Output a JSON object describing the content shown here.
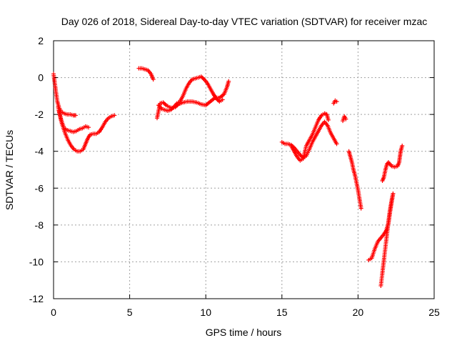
{
  "chart_data": {
    "type": "scatter",
    "title": "Day 026 of 2018, Sidereal Day-to-day VTEC variation (SDTVAR) for receiver mzac",
    "xlabel": "GPS time / hours",
    "ylabel": "SDTVAR / TECUs",
    "xlim": [
      0,
      25
    ],
    "ylim": [
      -12,
      2
    ],
    "xticks": [
      "0",
      "5",
      "10",
      "15",
      "20",
      "25"
    ],
    "yticks": [
      "2",
      "0",
      "-2",
      "-4",
      "-6",
      "-8",
      "-10",
      "-12"
    ],
    "grid": true,
    "marker": "+",
    "series": [
      {
        "name": "SDTVAR",
        "color": "#ff0000",
        "segments": [
          [
            [
              0.0,
              0.2
            ],
            [
              0.08,
              -0.3
            ],
            [
              0.16,
              -0.8
            ],
            [
              0.25,
              -1.3
            ],
            [
              0.35,
              -1.6
            ],
            [
              0.5,
              -1.85
            ],
            [
              0.7,
              -1.95
            ],
            [
              0.9,
              -2.0
            ],
            [
              1.1,
              -2.0
            ],
            [
              1.3,
              -2.05
            ],
            [
              1.45,
              -2.05
            ]
          ],
          [
            [
              0.3,
              -1.6
            ],
            [
              0.5,
              -2.3
            ],
            [
              0.7,
              -2.75
            ],
            [
              0.9,
              -2.85
            ],
            [
              1.1,
              -2.9
            ],
            [
              1.3,
              -2.95
            ],
            [
              1.5,
              -2.9
            ],
            [
              1.7,
              -2.8
            ],
            [
              1.9,
              -2.75
            ],
            [
              2.1,
              -2.65
            ],
            [
              2.3,
              -2.7
            ]
          ],
          [
            [
              0.35,
              -1.8
            ],
            [
              0.55,
              -2.5
            ],
            [
              0.75,
              -3.0
            ],
            [
              0.95,
              -3.4
            ],
            [
              1.15,
              -3.7
            ],
            [
              1.35,
              -3.9
            ],
            [
              1.55,
              -4.0
            ],
            [
              1.75,
              -4.0
            ],
            [
              1.95,
              -3.9
            ],
            [
              2.1,
              -3.6
            ],
            [
              2.25,
              -3.3
            ],
            [
              2.4,
              -3.1
            ],
            [
              2.6,
              -3.05
            ],
            [
              2.8,
              -3.05
            ],
            [
              3.0,
              -2.95
            ],
            [
              3.2,
              -2.7
            ],
            [
              3.4,
              -2.4
            ],
            [
              3.6,
              -2.2
            ],
            [
              3.8,
              -2.1
            ],
            [
              4.0,
              -2.05
            ]
          ],
          [
            [
              5.6,
              0.5
            ],
            [
              5.8,
              0.5
            ],
            [
              6.0,
              0.45
            ],
            [
              6.2,
              0.4
            ],
            [
              6.4,
              0.2
            ],
            [
              6.55,
              -0.1
            ]
          ],
          [
            [
              6.8,
              -2.2
            ],
            [
              6.9,
              -1.8
            ],
            [
              7.0,
              -1.4
            ],
            [
              7.2,
              -1.35
            ],
            [
              7.4,
              -1.5
            ],
            [
              7.6,
              -1.6
            ],
            [
              7.8,
              -1.65
            ],
            [
              8.0,
              -1.6
            ],
            [
              8.2,
              -1.45
            ],
            [
              8.5,
              -1.35
            ],
            [
              8.8,
              -1.3
            ],
            [
              9.1,
              -1.3
            ],
            [
              9.4,
              -1.35
            ],
            [
              9.7,
              -1.45
            ],
            [
              10.0,
              -1.5
            ],
            [
              10.3,
              -1.3
            ],
            [
              10.6,
              -1.1
            ],
            [
              10.9,
              -1.1
            ],
            [
              11.2,
              -0.9
            ],
            [
              11.4,
              -0.5
            ],
            [
              11.5,
              -0.2
            ]
          ],
          [
            [
              6.9,
              -1.5
            ],
            [
              7.1,
              -1.7
            ],
            [
              7.3,
              -1.75
            ],
            [
              7.5,
              -1.8
            ],
            [
              7.7,
              -1.75
            ],
            [
              7.9,
              -1.6
            ],
            [
              8.1,
              -1.4
            ],
            [
              8.3,
              -1.3
            ],
            [
              8.5,
              -1.0
            ],
            [
              8.7,
              -0.6
            ],
            [
              8.9,
              -0.3
            ],
            [
              9.1,
              -0.1
            ],
            [
              9.3,
              -0.05
            ],
            [
              9.5,
              0.0
            ],
            [
              9.7,
              0.05
            ],
            [
              9.9,
              -0.1
            ],
            [
              10.1,
              -0.3
            ],
            [
              10.3,
              -0.6
            ],
            [
              10.5,
              -0.9
            ],
            [
              10.7,
              -1.15
            ],
            [
              10.9,
              -1.3
            ],
            [
              11.1,
              -1.2
            ]
          ],
          [
            [
              15.0,
              -3.5
            ],
            [
              15.2,
              -3.6
            ],
            [
              15.4,
              -3.6
            ],
            [
              15.6,
              -3.65
            ],
            [
              15.8,
              -3.8
            ],
            [
              16.0,
              -4.0
            ],
            [
              16.2,
              -4.2
            ],
            [
              16.4,
              -4.35
            ],
            [
              16.6,
              -4.25
            ],
            [
              16.8,
              -3.9
            ],
            [
              17.0,
              -3.5
            ],
            [
              17.2,
              -3.2
            ],
            [
              17.4,
              -2.9
            ],
            [
              17.6,
              -2.6
            ],
            [
              17.8,
              -2.4
            ],
            [
              18.0,
              -2.6
            ],
            [
              18.2,
              -3.0
            ],
            [
              18.4,
              -3.3
            ],
            [
              18.6,
              -3.6
            ]
          ],
          [
            [
              15.6,
              -3.7
            ],
            [
              15.8,
              -4.0
            ],
            [
              16.0,
              -4.3
            ],
            [
              16.2,
              -4.5
            ],
            [
              16.4,
              -4.4
            ],
            [
              16.6,
              -3.7
            ],
            [
              16.8,
              -3.4
            ],
            [
              17.0,
              -3.1
            ],
            [
              17.2,
              -2.7
            ],
            [
              17.4,
              -2.3
            ],
            [
              17.6,
              -2.05
            ],
            [
              17.8,
              -1.95
            ],
            [
              17.95,
              -2.0
            ],
            [
              18.05,
              -2.3
            ]
          ],
          [
            [
              18.4,
              -1.4
            ],
            [
              18.5,
              -1.25
            ],
            [
              18.6,
              -1.3
            ]
          ],
          [
            [
              19.0,
              -2.35
            ],
            [
              19.1,
              -2.1
            ],
            [
              19.2,
              -2.25
            ]
          ],
          [
            [
              19.4,
              -4.0
            ],
            [
              19.5,
              -4.3
            ],
            [
              19.6,
              -4.6
            ],
            [
              19.7,
              -5.0
            ],
            [
              19.8,
              -5.3
            ],
            [
              19.9,
              -5.7
            ],
            [
              20.0,
              -6.1
            ],
            [
              20.1,
              -6.6
            ],
            [
              20.2,
              -7.1
            ]
          ],
          [
            [
              20.7,
              -9.9
            ],
            [
              20.9,
              -9.8
            ],
            [
              21.1,
              -9.3
            ],
            [
              21.3,
              -8.9
            ],
            [
              21.5,
              -8.7
            ],
            [
              21.7,
              -8.5
            ],
            [
              21.85,
              -8.3
            ],
            [
              22.0,
              -7.9
            ],
            [
              22.1,
              -7.3
            ],
            [
              22.2,
              -6.8
            ],
            [
              22.3,
              -6.3
            ]
          ],
          [
            [
              21.5,
              -11.3
            ],
            [
              21.6,
              -10.6
            ],
            [
              21.7,
              -9.9
            ],
            [
              21.8,
              -9.2
            ],
            [
              21.9,
              -8.5
            ],
            [
              22.0,
              -7.8
            ],
            [
              22.1,
              -7.2
            ],
            [
              22.2,
              -6.7
            ],
            [
              22.3,
              -6.3
            ]
          ],
          [
            [
              21.6,
              -5.6
            ],
            [
              21.7,
              -5.4
            ],
            [
              21.8,
              -5.0
            ],
            [
              21.9,
              -4.7
            ],
            [
              22.0,
              -4.6
            ],
            [
              22.2,
              -4.8
            ],
            [
              22.4,
              -4.85
            ],
            [
              22.6,
              -4.8
            ],
            [
              22.7,
              -4.6
            ],
            [
              22.75,
              -4.3
            ],
            [
              22.8,
              -4.0
            ],
            [
              22.9,
              -3.7
            ]
          ]
        ]
      }
    ]
  }
}
